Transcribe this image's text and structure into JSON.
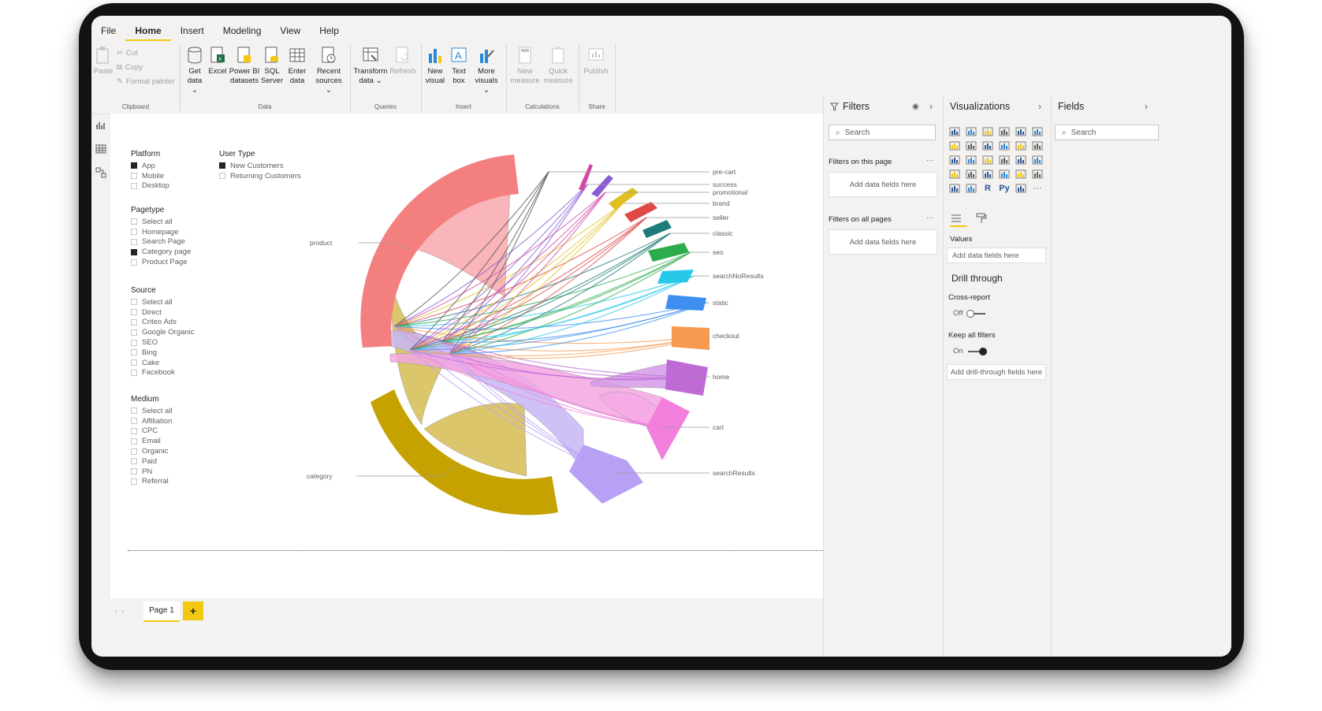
{
  "menu": {
    "items": [
      "File",
      "Home",
      "Insert",
      "Modeling",
      "View",
      "Help"
    ],
    "active": "Home"
  },
  "ribbon": {
    "clipboard": {
      "paste": "Paste",
      "cut": "Cut",
      "copy": "Copy",
      "format_painter": "Format painter",
      "label": "Clipboard"
    },
    "data": {
      "get_data": "Get data ⌄",
      "excel": "Excel",
      "powerbi": "Power BI datasets",
      "sql": "SQL Server",
      "enter": "Enter data",
      "recent": "Recent sources ⌄",
      "label": "Data"
    },
    "queries": {
      "transform": "Transform data ⌄",
      "refresh": "Refresh",
      "label": "Queries"
    },
    "insert": {
      "new_visual": "New visual",
      "text_box": "Text box",
      "more_visuals": "More visuals ⌄",
      "label": "Insert"
    },
    "calculations": {
      "new_measure": "New measure",
      "quick_measure": "Quick measure",
      "label": "Calculations"
    },
    "share": {
      "publish": "Publish",
      "label": "Share"
    }
  },
  "slicers": {
    "platform": {
      "title": "Platform",
      "items": [
        {
          "label": "App",
          "checked": true
        },
        {
          "label": "Mobile",
          "checked": false
        },
        {
          "label": "Desktop",
          "checked": false
        }
      ]
    },
    "user_type": {
      "title": "User Type",
      "items": [
        {
          "label": "New Customers",
          "checked": true
        },
        {
          "label": "Returning Customers",
          "checked": false
        }
      ]
    },
    "pagetype": {
      "title": "Pagetype",
      "items": [
        {
          "label": "Select all",
          "checked": false
        },
        {
          "label": "Homepage",
          "checked": false
        },
        {
          "label": "Search Page",
          "checked": false
        },
        {
          "label": "Category page",
          "checked": true
        },
        {
          "label": "Product Page",
          "checked": false
        }
      ]
    },
    "source": {
      "title": "Source",
      "items": [
        {
          "label": "Select all",
          "checked": false
        },
        {
          "label": "Direct",
          "checked": false
        },
        {
          "label": "Criteo Ads",
          "checked": false
        },
        {
          "label": "Google Organic",
          "checked": false
        },
        {
          "label": "SEO",
          "checked": false
        },
        {
          "label": "Bing",
          "checked": false
        },
        {
          "label": "Cake",
          "checked": false
        },
        {
          "label": "Facebook",
          "checked": false
        }
      ]
    },
    "medium": {
      "title": "Medium",
      "items": [
        {
          "label": "Select all",
          "checked": false
        },
        {
          "label": "Affiliation",
          "checked": false
        },
        {
          "label": "CPC",
          "checked": false
        },
        {
          "label": "Email",
          "checked": false
        },
        {
          "label": "Organic",
          "checked": false
        },
        {
          "label": "Paid",
          "checked": false
        },
        {
          "label": "PN",
          "checked": false
        },
        {
          "label": "Referral",
          "checked": false
        }
      ]
    }
  },
  "chord": {
    "left_labels": {
      "product": "product",
      "category": "category"
    },
    "right_labels": [
      "pre-cart",
      "success",
      "promotional",
      "brand",
      "seller",
      "classic",
      "seo",
      "searchNoResults",
      "static",
      "checkout",
      "home",
      "cart",
      "searchResults"
    ],
    "colors": {
      "product": "#f47f7f",
      "category": "#c6a200",
      "searchResults": "#b8a0f5",
      "cart": "#f27fdc",
      "home": "#c06ad6",
      "checkout": "#f79a4f",
      "static": "#3f8ff0",
      "searchNoResults": "#27c8e8",
      "seo": "#2eab4a",
      "classic": "#1e7b7b",
      "seller": "#e04848",
      "brand": "#e0c020"
    }
  },
  "pages": {
    "tab": "Page 1",
    "add": "+"
  },
  "filters": {
    "title": "Filters",
    "search": "Search",
    "on_page": "Filters on this page",
    "on_all": "Filters on all pages",
    "add": "Add data fields here",
    "more": "···"
  },
  "viz": {
    "title": "Visualizations",
    "values_label": "Values",
    "add_values": "Add data fields here",
    "drill": "Drill through",
    "cross_report": "Cross-report",
    "off": "Off",
    "keep_filters": "Keep all filters",
    "on": "On",
    "add_drill": "Add drill-through fields here",
    "r_icon": "R",
    "py_icon": "Py",
    "more_icon": "···"
  },
  "fields": {
    "title": "Fields",
    "search": "Search"
  }
}
